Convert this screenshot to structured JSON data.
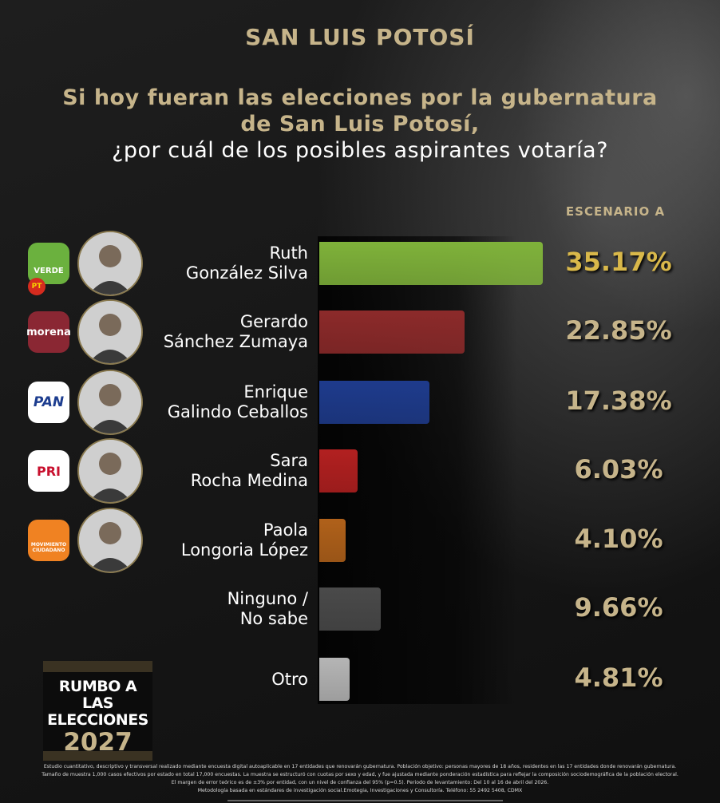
{
  "header": {
    "title": "SAN LUIS POTOSÍ",
    "question_line1": "Si hoy fueran las elecciones por la gubernatura",
    "question_line2": "de San Luis Potosí,",
    "question_line3": "¿por cuál de los posibles aspirantes votaría?"
  },
  "scenario_label": "ESCENARIO A",
  "chart_data": {
    "type": "bar",
    "orientation": "horizontal",
    "categories": [
      [
        "Ruth",
        "González Silva"
      ],
      [
        "Gerardo",
        "Sánchez Zumaya"
      ],
      [
        "Enrique",
        "Galindo Ceballos"
      ],
      [
        "Sara ",
        "Rocha Medina"
      ],
      [
        "Paola",
        "Longoria López"
      ],
      [
        "Ninguno /",
        "No sabe"
      ],
      [
        "Otro"
      ]
    ],
    "values": [
      35.17,
      22.85,
      17.38,
      6.03,
      4.1,
      9.66,
      4.81
    ],
    "value_labels": [
      "35.17%",
      "22.85%",
      "17.38%",
      "6.03%",
      "4.10%",
      "9.66%",
      "4.81%"
    ],
    "bar_colors": [
      "#7fb23a",
      "#8c2a2a",
      "#1e3b8c",
      "#b22020",
      "#b0611a",
      "#4a4a4a",
      "#b5b5b5"
    ],
    "parties": [
      {
        "logo": "VERDE",
        "badge": "PT",
        "color": "#6bb13e"
      },
      {
        "logo": "morena",
        "color": "#8a2733"
      },
      {
        "logo": "PAN",
        "color": "#ffffff"
      },
      {
        "logo": "PRI",
        "color": "#ffffff"
      },
      {
        "logo": "MOVIMIENTO CIUDADANO",
        "color": "#f08222"
      }
    ]
  },
  "branding": {
    "line1": "RUMBO A LAS",
    "line2": "ELECCIONES",
    "line3": "2027"
  },
  "footnote": {
    "line1": "Estudio cuantitativo, descriptivo y transversal realizado mediante encuesta digital autoaplicable en 17 entidades que renovarán gubernatura. Población objetivo: personas mayores de 18 años, residentes en las 17 entidades donde renovarán gubernatura.",
    "line2": "Tamaño de muestra 1,000 casos efectivos por estado en total 17,000 encuestas. La muestra se estructuró con cuotas por sexo y edad, y fue ajustada mediante ponderación estadística para reflejar la composición sociodemográfica de la población electoral.",
    "line3": "El margen de error teórico es de ±3% por entidad, con un nivel de confianza del 95% (p=0.5). Periodo de levantamiento: Del 10 al 16 de abril del 2026.",
    "line4": "Metodología basada en estándares de investigación social.Emotegia, Investigaciones y Consultoría. Teléfono: 55 2492 5408, CDMX"
  }
}
